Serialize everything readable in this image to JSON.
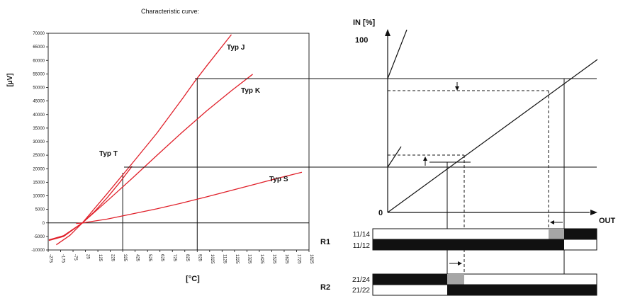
{
  "figure_title": "Characteristic curve:",
  "chart_data": {
    "type": "line",
    "title": "Characteristic curve:",
    "xlabel": "[°C]",
    "ylabel": "[µV]",
    "xlim": [
      -275,
      1825
    ],
    "ylim": [
      -10000,
      70000
    ],
    "x_ticks": [
      "-275",
      "-175",
      "-75",
      "25",
      "125",
      "225",
      "325",
      "425",
      "525",
      "625",
      "725",
      "825",
      "925",
      "1025",
      "1125",
      "1225",
      "1325",
      "1425",
      "1525",
      "1625",
      "1725",
      "1825"
    ],
    "y_ticks": [
      "70000",
      "65000",
      "60000",
      "55000",
      "50000",
      "45000",
      "40000",
      "35000",
      "30000",
      "25000",
      "20000",
      "15000",
      "10000",
      "5000",
      "0",
      "-5000",
      "-10000"
    ],
    "grid": false,
    "series": [
      {
        "name": "Typ J",
        "color": "#e0202a",
        "points": [
          [
            -210,
            -8100
          ],
          [
            -100,
            -4600
          ],
          [
            0,
            0
          ],
          [
            200,
            10800
          ],
          [
            400,
            21900
          ],
          [
            600,
            33100
          ],
          [
            800,
            45500
          ],
          [
            900,
            51900
          ],
          [
            1000,
            57900
          ],
          [
            1200,
            69500
          ]
        ]
      },
      {
        "name": "Typ K",
        "color": "#e0202a",
        "points": [
          [
            -270,
            -6500
          ],
          [
            -150,
            -5000
          ],
          [
            0,
            0
          ],
          [
            200,
            8100
          ],
          [
            400,
            16400
          ],
          [
            600,
            24900
          ],
          [
            800,
            33300
          ],
          [
            1000,
            41300
          ],
          [
            1200,
            48800
          ],
          [
            1372,
            54900
          ]
        ]
      },
      {
        "name": "Typ T",
        "color": "#e0202a",
        "points": [
          [
            -270,
            -6300
          ],
          [
            -150,
            -4700
          ],
          [
            0,
            0
          ],
          [
            100,
            4300
          ],
          [
            200,
            9300
          ],
          [
            300,
            14900
          ],
          [
            400,
            20900
          ]
        ]
      },
      {
        "name": "Typ S",
        "color": "#e0202a",
        "points": [
          [
            -50,
            -240
          ],
          [
            0,
            0
          ],
          [
            200,
            1400
          ],
          [
            400,
            3300
          ],
          [
            600,
            5200
          ],
          [
            800,
            7300
          ],
          [
            1000,
            9600
          ],
          [
            1200,
            12000
          ],
          [
            1400,
            14400
          ],
          [
            1600,
            16800
          ],
          [
            1768,
            18700
          ]
        ]
      }
    ],
    "reference_lines": [
      {
        "x": 325,
        "y": 18500
      },
      {
        "x": 925,
        "y": 53500
      }
    ]
  },
  "diagram": {
    "in_axis_label": "IN [%]",
    "in_axis_max": "100",
    "origin_label": "0",
    "out_axis_label": "OUT",
    "relays": [
      {
        "name": "R1",
        "contacts": [
          "11/14",
          "11/12"
        ]
      },
      {
        "name": "R2",
        "contacts": [
          "21/24",
          "21/22"
        ]
      }
    ]
  },
  "colors": {
    "curve": "#e0202a",
    "line": "#111111",
    "fill_black": "#111111",
    "fill_gray": "#a6a6a6"
  }
}
